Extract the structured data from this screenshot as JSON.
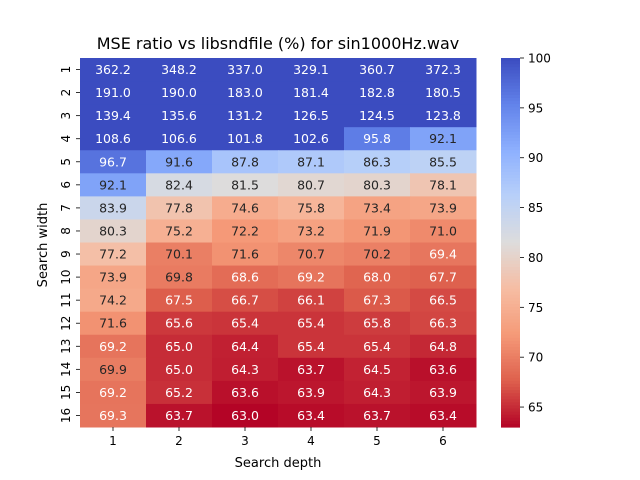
{
  "chart_data": {
    "type": "heatmap",
    "title": "MSE ratio vs libsndfile (%) for sin1000Hz.wav",
    "xlabel": "Search depth",
    "ylabel": "Search width",
    "x_categories": [
      "1",
      "2",
      "3",
      "4",
      "5",
      "6"
    ],
    "y_categories": [
      "1",
      "2",
      "3",
      "4",
      "5",
      "6",
      "7",
      "8",
      "9",
      "10",
      "11",
      "12",
      "13",
      "14",
      "15",
      "16"
    ],
    "values": [
      [
        362.2,
        348.2,
        337.0,
        329.1,
        360.7,
        372.3
      ],
      [
        191.0,
        190.0,
        183.0,
        181.4,
        182.8,
        180.5
      ],
      [
        139.4,
        135.6,
        131.2,
        126.5,
        124.5,
        123.8
      ],
      [
        108.6,
        106.6,
        101.8,
        102.6,
        95.8,
        92.1
      ],
      [
        96.7,
        91.6,
        87.8,
        87.1,
        86.3,
        85.5
      ],
      [
        92.1,
        82.4,
        81.5,
        80.7,
        80.3,
        78.1
      ],
      [
        83.9,
        77.8,
        74.6,
        75.8,
        73.4,
        73.9
      ],
      [
        80.3,
        75.2,
        72.2,
        73.2,
        71.9,
        71.0
      ],
      [
        77.2,
        70.1,
        71.6,
        70.7,
        70.2,
        69.4
      ],
      [
        73.9,
        69.8,
        68.6,
        69.2,
        68.0,
        67.7
      ],
      [
        74.2,
        67.5,
        66.7,
        66.1,
        67.3,
        66.5
      ],
      [
        71.6,
        65.6,
        65.4,
        65.4,
        65.8,
        66.3
      ],
      [
        69.2,
        65.0,
        64.4,
        65.4,
        65.4,
        64.8
      ],
      [
        69.9,
        65.0,
        64.3,
        63.7,
        64.5,
        63.6
      ],
      [
        69.2,
        65.2,
        63.6,
        63.9,
        64.3,
        63.9
      ],
      [
        69.3,
        63.7,
        63.0,
        63.4,
        63.7,
        63.4
      ]
    ],
    "colorbar": {
      "colormap": "coolwarm_r",
      "vmin": 63.0,
      "vmax": 100,
      "ticks": [
        65,
        70,
        75,
        80,
        85,
        90,
        95,
        100
      ]
    },
    "grid": false,
    "legend": "colorbar-right"
  }
}
